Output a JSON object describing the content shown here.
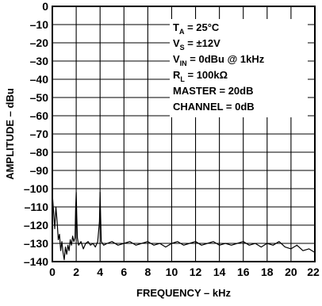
{
  "chart_data": {
    "type": "line",
    "xlabel": "FREQUENCY – kHz",
    "ylabel": "AMPLITUDE – dBu",
    "xlim": [
      0,
      22
    ],
    "ylim": [
      -140,
      0
    ],
    "x_ticks": [
      "0",
      "2",
      "4",
      "6",
      "8",
      "10",
      "12",
      "14",
      "16",
      "18",
      "20",
      "22"
    ],
    "y_ticks": [
      "0",
      "–10",
      "–20",
      "–30",
      "–40",
      "–50",
      "–60",
      "–70",
      "–80",
      "–90",
      "–100",
      "–110",
      "–120",
      "–130",
      "–140"
    ],
    "grid": true,
    "legend_box": {
      "lines": [
        {
          "main": "T",
          "sub": "A",
          "rest": " = 25°C"
        },
        {
          "main": "V",
          "sub": "S",
          "rest": " = ±12V"
        },
        {
          "main": "V",
          "sub": "IN",
          "rest": " = 0dBu @ 1kHz"
        },
        {
          "main": "R",
          "sub": "L",
          "rest": " = 100kΩ"
        },
        {
          "main": "MASTER = 20dB",
          "sub": "",
          "rest": ""
        },
        {
          "main": "CHANNEL = 0dB",
          "sub": "",
          "rest": ""
        }
      ]
    },
    "series": [
      {
        "color": "#000000",
        "x": [
          0,
          0.1,
          0.2,
          0.3,
          0.4,
          0.5,
          0.6,
          0.7,
          0.8,
          0.9,
          1.0,
          1.1,
          1.2,
          1.3,
          1.4,
          1.5,
          1.6,
          1.7,
          1.8,
          1.9,
          1.95,
          2.0,
          2.05,
          2.1,
          2.2,
          2.4,
          2.6,
          2.8,
          3.0,
          3.2,
          3.4,
          3.6,
          3.8,
          3.95,
          4.0,
          4.05,
          4.1,
          4.3,
          4.6,
          5.0,
          5.5,
          6.0,
          6.5,
          7.0,
          7.5,
          8.0,
          8.5,
          9.0,
          9.5,
          10.0,
          10.5,
          11.0,
          11.5,
          12.0,
          12.5,
          13.0,
          13.5,
          14.0,
          14.5,
          15.0,
          15.5,
          16.0,
          16.5,
          17.0,
          17.5,
          18.0,
          18.5,
          19.0,
          19.5,
          20.0,
          20.5,
          21.0,
          21.5,
          22.0
        ],
        "values": [
          -103,
          -112,
          -122,
          -110,
          -118,
          -128,
          -125,
          -134,
          -129,
          -135,
          -139,
          -132,
          -136,
          -131,
          -134,
          -128,
          -131,
          -126,
          -129,
          -127,
          -112,
          -102,
          -115,
          -127,
          -131,
          -129,
          -133,
          -130,
          -129,
          -131,
          -130,
          -132,
          -129,
          -118,
          -102,
          -116,
          -129,
          -131,
          -130,
          -129,
          -131,
          -130,
          -129,
          -131,
          -130,
          -129,
          -131,
          -130,
          -132,
          -130,
          -129,
          -131,
          -130,
          -129,
          -131,
          -130,
          -129,
          -131,
          -130,
          -131,
          -130,
          -129,
          -131,
          -130,
          -132,
          -130,
          -131,
          -129,
          -132,
          -133,
          -131,
          -134,
          -133,
          -135
        ]
      }
    ]
  }
}
